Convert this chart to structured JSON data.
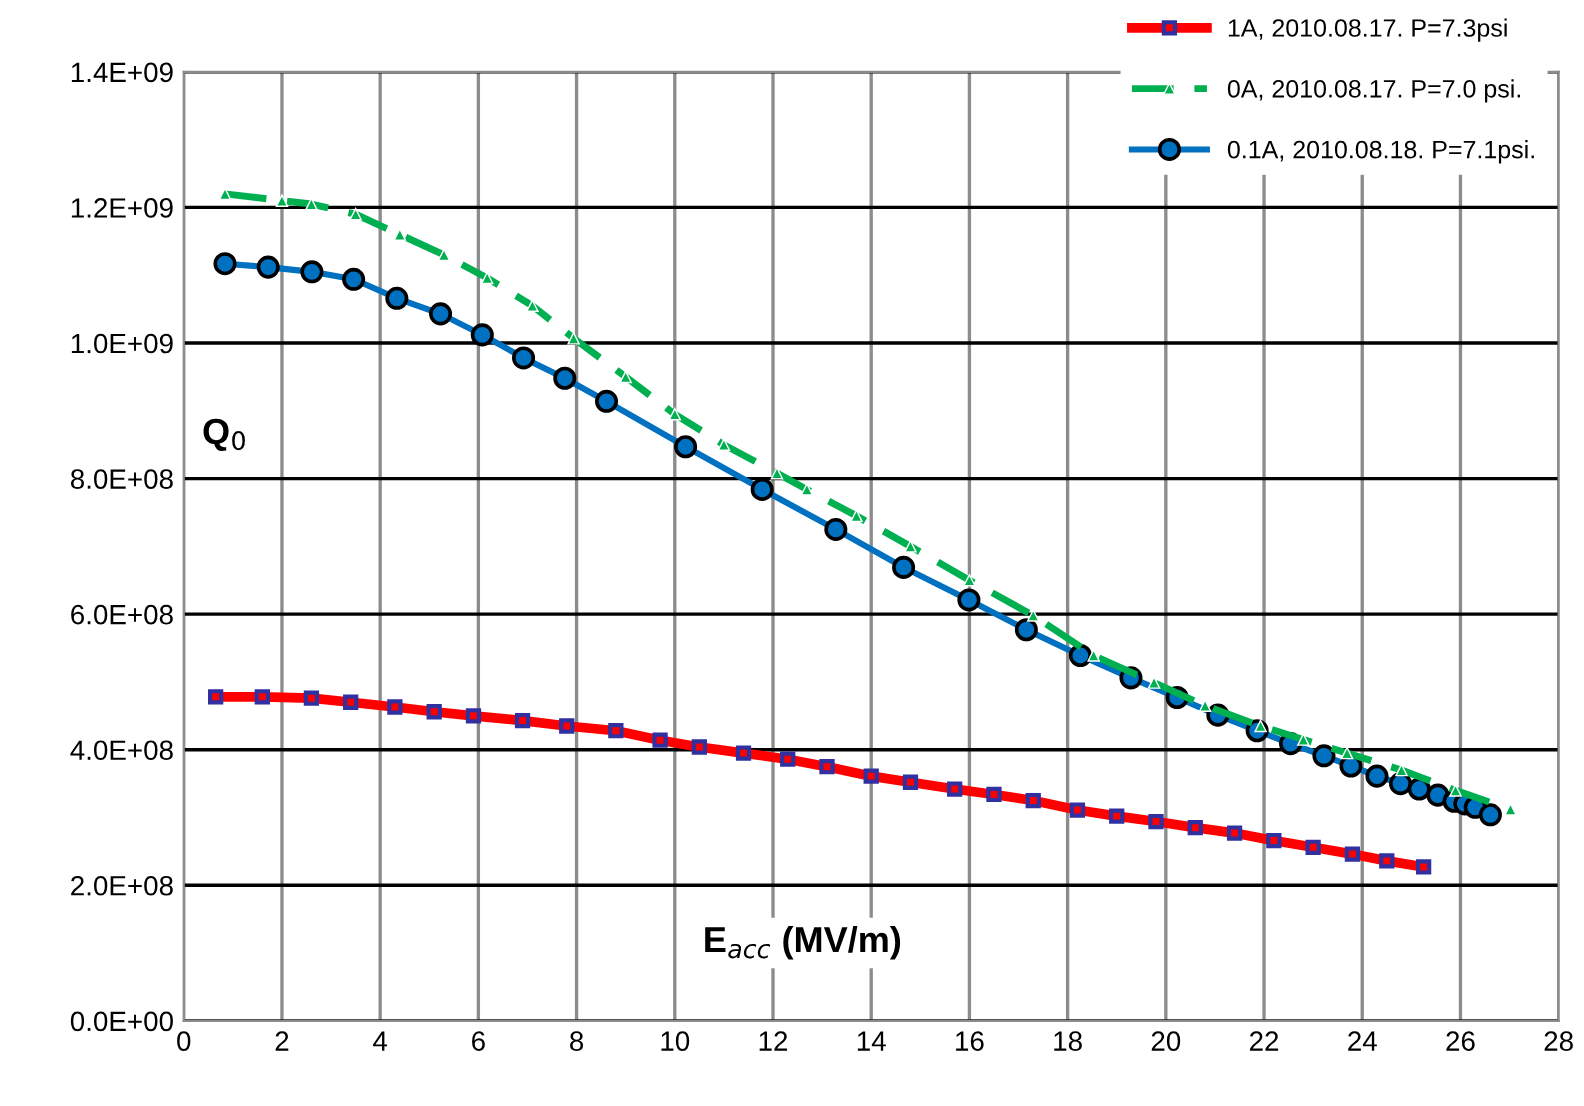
{
  "chart_data": {
    "type": "line",
    "xlabel": "E$_{acc}$ (MV/m)",
    "ylabel": "Q$_{0}$",
    "xlim": [
      0,
      28
    ],
    "xticks": [
      0,
      2,
      4,
      6,
      8,
      10,
      12,
      14,
      16,
      18,
      20,
      22,
      24,
      26,
      28
    ],
    "ylim": [
      0,
      1400000000
    ],
    "yticks": [
      {
        "value": 0,
        "label": "0.0E+00"
      },
      {
        "value": 200000000,
        "label": "2.0E+08"
      },
      {
        "value": 400000000,
        "label": "4.0E+08"
      },
      {
        "value": 600000000,
        "label": "6.0E+08"
      },
      {
        "value": 800000000,
        "label": "8.0E+08"
      },
      {
        "value": 1000000000,
        "label": "1.0E+09"
      },
      {
        "value": 1200000000,
        "label": "1.2E+09"
      },
      {
        "value": 1400000000,
        "label": "1.4E+09"
      }
    ],
    "grid": true,
    "legend": "top right",
    "series": [
      {
        "name": "1A, 2010.08.17. P=7.3psi",
        "color": "#ff0000",
        "marker": "square",
        "line_style": "solid",
        "x": [
          0.65,
          1.6,
          2.6,
          3.4,
          4.3,
          5.1,
          5.9,
          6.9,
          7.8,
          8.8,
          9.7,
          10.5,
          11.4,
          12.3,
          13.1,
          14.0,
          14.8,
          15.7,
          16.5,
          17.3,
          18.2,
          19.0,
          19.8,
          20.6,
          21.4,
          22.2,
          23.0,
          23.8,
          24.5,
          25.25
        ],
        "values": [
          478000000,
          478000000,
          476000000,
          470000000,
          463000000,
          456000000,
          450000000,
          443000000,
          435000000,
          428000000,
          414000000,
          404000000,
          395000000,
          386000000,
          375000000,
          361000000,
          352000000,
          342000000,
          334000000,
          325000000,
          311000000,
          302000000,
          294000000,
          285000000,
          277000000,
          266000000,
          256000000,
          246000000,
          236000000,
          227000000
        ]
      },
      {
        "name": "0A, 2010.08.17. P=7.0 psi.",
        "color": "#00b050",
        "marker": "triangle",
        "line_style": "dashed",
        "x": [
          0.84,
          2.0,
          2.6,
          3.5,
          4.4,
          5.3,
          6.18,
          7.1,
          7.94,
          9.0,
          10.0,
          11.0,
          12.08,
          12.69,
          13.7,
          14.8,
          16.0,
          17.3,
          18.53,
          19.76,
          20.8,
          21.93,
          22.8,
          23.69,
          24.8,
          25.9,
          27.02
        ],
        "values": [
          1220000000,
          1210000000,
          1205000000,
          1190000000,
          1160000000,
          1130000000,
          1096000000,
          1055000000,
          1007000000,
          950000000,
          895000000,
          850000000,
          808000000,
          784000000,
          745000000,
          700000000,
          650000000,
          598000000,
          539000000,
          499000000,
          465000000,
          435000000,
          415000000,
          395000000,
          370000000,
          340000000,
          312000000
        ]
      },
      {
        "name": "0.1A, 2010.08.18. P=7.1psi.",
        "color": "#0070c0",
        "marker": "circle",
        "line_style": "solid",
        "x": [
          0.84,
          1.72,
          2.61,
          3.46,
          4.34,
          5.23,
          6.08,
          6.92,
          7.76,
          8.61,
          10.22,
          11.78,
          13.28,
          14.66,
          15.99,
          17.16,
          18.26,
          19.29,
          20.23,
          21.06,
          21.86,
          22.54,
          23.22,
          23.77,
          24.3,
          24.78,
          25.16,
          25.54,
          25.87,
          26.09,
          26.3,
          26.61
        ],
        "values": [
          1117000000,
          1112000000,
          1105000000,
          1094000000,
          1066000000,
          1043000000,
          1012000000,
          978000000,
          948000000,
          914000000,
          847000000,
          784000000,
          725000000,
          669000000,
          621000000,
          577000000,
          539000000,
          506000000,
          477000000,
          451000000,
          428000000,
          409000000,
          391000000,
          376000000,
          361000000,
          350000000,
          342000000,
          333000000,
          324000000,
          320000000,
          315000000,
          304000000
        ]
      }
    ]
  }
}
